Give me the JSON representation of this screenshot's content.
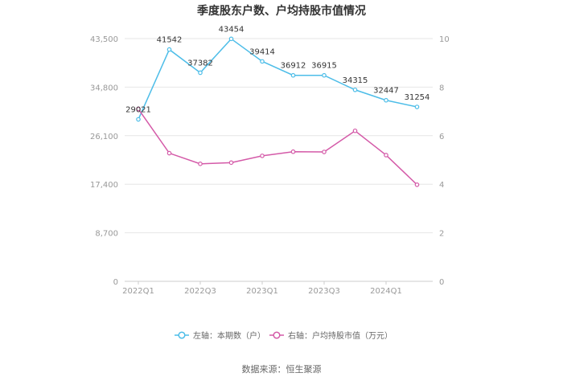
{
  "chart_data": {
    "type": "line",
    "title": "季度股东户数、户均持股市值情况",
    "categories": [
      "2022Q1",
      "2022Q2",
      "2022Q3",
      "2022Q4",
      "2023Q1",
      "2023Q2",
      "2023Q3",
      "2023Q4",
      "2024Q1",
      "2024Q2"
    ],
    "x_tick_labels": [
      "2022Q1",
      "2022Q3",
      "2023Q1",
      "2023Q3",
      "2024Q1"
    ],
    "y_left": {
      "ticks": [
        "0",
        "8,700",
        "17,400",
        "26,100",
        "34,800",
        "43,500"
      ],
      "ylim": [
        0,
        43500
      ]
    },
    "y_right": {
      "ticks": [
        "0",
        "2",
        "4",
        "6",
        "8",
        "10"
      ],
      "ylim": [
        0,
        10
      ]
    },
    "series": [
      {
        "name": "左轴：本期数（户）",
        "axis": "left",
        "color": "#4dbde8",
        "values": [
          29021,
          41542,
          37382,
          43454,
          39414,
          36912,
          36915,
          34315,
          32447,
          31254
        ],
        "labels": [
          "29021",
          "41542",
          "37382",
          "43454",
          "39414",
          "36912",
          "36915",
          "34315",
          "32447",
          "31254"
        ]
      },
      {
        "name": "右轴：户均持股市值（万元）",
        "axis": "right",
        "color": "#d45aa8",
        "values": [
          7.1,
          5.28,
          4.84,
          4.89,
          5.17,
          5.34,
          5.33,
          6.2,
          5.2,
          3.98
        ]
      }
    ],
    "grid": true,
    "legend_position": "bottom"
  },
  "source": "数据来源：恒生聚源"
}
